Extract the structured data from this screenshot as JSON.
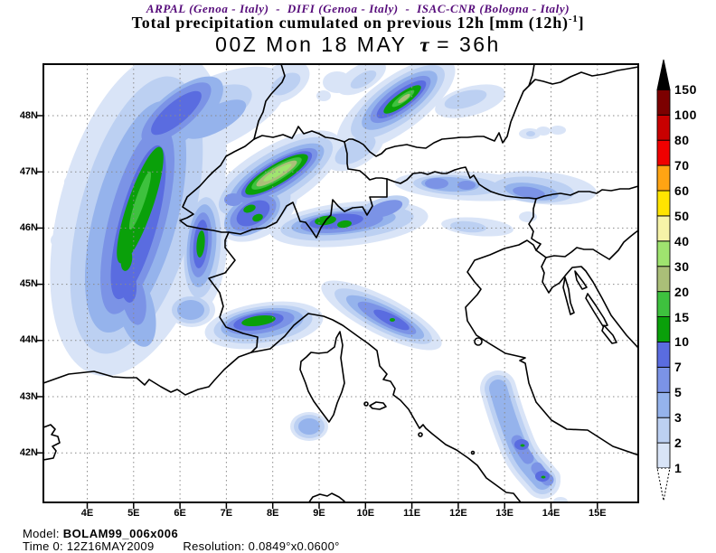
{
  "header": {
    "credit_line": "ARPAL (Genoa - Italy)  -  DIFI (Genoa - Italy)  -  ISAC-CNR (Bologna - Italy)",
    "product_title": "Total precipitation cumulated on previous 12h [mm (12h)",
    "product_sup": "-1",
    "product_close": "]",
    "run_datetime": "00Z Mon 18 MAY",
    "tau_symbol": "τ",
    "tau_value": "= 36h"
  },
  "map": {
    "lat_labels": [
      "48N",
      "47N",
      "46N",
      "45N",
      "44N",
      "43N",
      "42N"
    ],
    "lon_labels": [
      "4E",
      "5E",
      "6E",
      "7E",
      "8E",
      "9E",
      "10E",
      "11E",
      "12E",
      "13E",
      "14E",
      "15E"
    ]
  },
  "colorbar": {
    "levels": [
      "1",
      "2",
      "3",
      "5",
      "7",
      "10",
      "15",
      "20",
      "30",
      "40",
      "50",
      "60",
      "70",
      "80",
      "100",
      "150"
    ],
    "segment_colors": [
      "#d9e4f7",
      "#bcd0f2",
      "#95b3ec",
      "#7b93e6",
      "#5a6ce0",
      "#0aa00a",
      "#3ec13e",
      "#aabf78",
      "#9fe46f",
      "#f6f3a8",
      "#ffe400",
      "#ffa413",
      "#f00000",
      "#c80000",
      "#7c0000"
    ],
    "over_arrow_color": "#000000",
    "under_color": "#ffffff"
  },
  "footer": {
    "model_label": "Model:",
    "model_value": "BOLAM99_006x006",
    "time_label": "Time 0:",
    "time_value": "12Z16MAY2009",
    "resolution_label": "Resolution:",
    "resolution_value": "0.0849°x0.0600°"
  }
}
